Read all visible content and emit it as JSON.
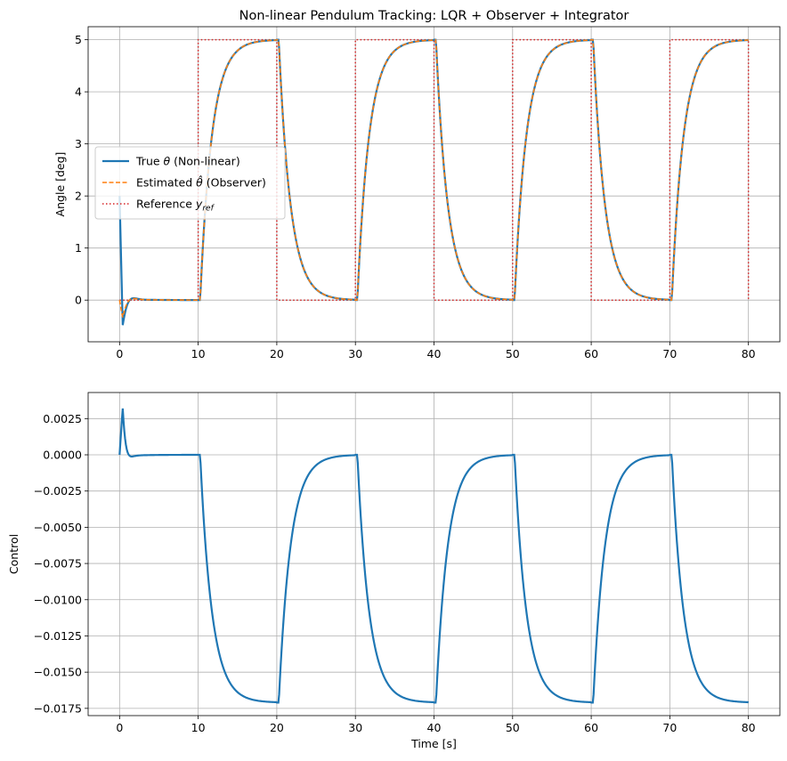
{
  "chart_data": [
    {
      "type": "line",
      "title": "Non-linear Pendulum Tracking: LQR + Observer + Integrator",
      "xlabel": "",
      "ylabel": "Angle [deg]",
      "xlim": [
        -4,
        84
      ],
      "ylim": [
        -0.8,
        5.25
      ],
      "xticks": [
        0,
        10,
        20,
        30,
        40,
        50,
        60,
        70,
        80
      ],
      "yticks": [
        0,
        1,
        2,
        3,
        4,
        5
      ],
      "xtick_labels": [
        "0",
        "10",
        "20",
        "30",
        "40",
        "50",
        "60",
        "70",
        "80"
      ],
      "ytick_labels": [
        "0",
        "1",
        "2",
        "3",
        "4",
        "5"
      ],
      "grid": true,
      "legend": "center-left",
      "step_period": 20,
      "step_high": 5,
      "settle_time_constant": 1.5,
      "series": [
        {
          "name": "True θ (Non-linear)",
          "label_base": "True ",
          "label_sym": "θ",
          "label_rest": " (Non-linear)",
          "color": "#1f77b4",
          "style": "solid",
          "start_value": 2.0,
          "dip_value": -0.5
        },
        {
          "name": "Estimated θ̂ (Observer)",
          "label_base": "Estimated ",
          "label_sym": "θ̂",
          "label_rest": " (Observer)",
          "color": "#ff7f0e",
          "style": "dashed",
          "start_value": 0.0,
          "dip_value": -0.35
        },
        {
          "name": "Reference y_ref",
          "label_base": "Reference ",
          "label_sym": "y",
          "label_sub": "ref",
          "label_rest": "",
          "color": "#d62728",
          "style": "dotted"
        }
      ]
    },
    {
      "type": "line",
      "title": "",
      "xlabel": "Time [s]",
      "ylabel": "Control",
      "xlim": [
        -4,
        84
      ],
      "ylim": [
        -0.018,
        0.0043
      ],
      "xticks": [
        0,
        10,
        20,
        30,
        40,
        50,
        60,
        70,
        80
      ],
      "yticks": [
        0.0025,
        0.0,
        -0.0025,
        -0.005,
        -0.0075,
        -0.01,
        -0.0125,
        -0.015,
        -0.0175
      ],
      "xtick_labels": [
        "0",
        "10",
        "20",
        "30",
        "40",
        "50",
        "60",
        "70",
        "80"
      ],
      "ytick_labels": [
        "0.0025",
        "0.0000",
        "−0.0025",
        "−0.0050",
        "−0.0075",
        "−0.0100",
        "−0.0125",
        "−0.0150",
        "−0.0175"
      ],
      "grid": true,
      "control_low": -0.0171,
      "control_peak": 0.0033,
      "series": [
        {
          "name": "",
          "color": "#1f77b4",
          "style": "solid"
        }
      ]
    }
  ]
}
